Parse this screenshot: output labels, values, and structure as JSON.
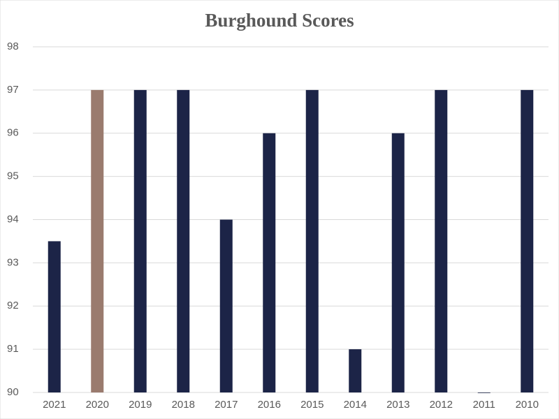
{
  "chart_data": {
    "type": "bar",
    "title": "Burghound Scores",
    "categories": [
      "2021",
      "2020",
      "2019",
      "2018",
      "2017",
      "2016",
      "2015",
      "2014",
      "2013",
      "2012",
      "2011",
      "2010"
    ],
    "values": [
      93.5,
      97,
      97,
      97,
      94,
      96,
      97,
      91,
      96,
      97,
      90,
      97
    ],
    "colors": [
      "#1c2447",
      "#9a7b6e",
      "#1c2447",
      "#1c2447",
      "#1c2447",
      "#1c2447",
      "#1c2447",
      "#1c2447",
      "#1c2447",
      "#1c2447",
      "#1c2447",
      "#1c2447"
    ],
    "ylim": [
      90,
      98
    ],
    "yticks": [
      90,
      91,
      92,
      93,
      94,
      95,
      96,
      97,
      98
    ],
    "grid": true
  }
}
